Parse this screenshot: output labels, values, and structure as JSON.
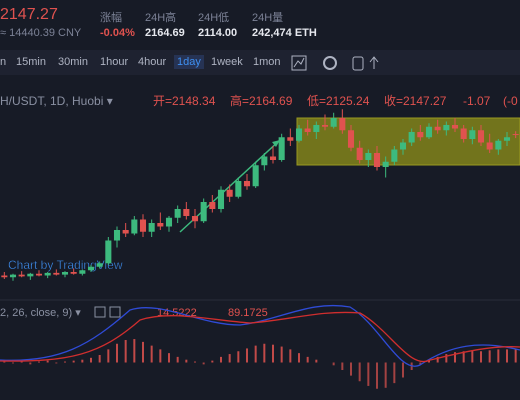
{
  "header": {
    "price": "2147.27",
    "cny": "≈ 14440.39 CNY",
    "stats": [
      {
        "label": "涨幅",
        "value": "-0.04%"
      },
      {
        "label": "24H高",
        "value": "2164.69"
      },
      {
        "label": "24H低",
        "value": "2114.00"
      },
      {
        "label": "24H量",
        "value": "242,474 ETH"
      }
    ]
  },
  "toolbar": {
    "intervals": [
      "n",
      "15min",
      "30min",
      "1hour",
      "4hour",
      "1day",
      "1week",
      "1mon"
    ]
  },
  "chart": {
    "symbol": "H/USDT, 1D, Huobi ▾",
    "ohlc": [
      "开=2148.34",
      "高=2164.69",
      "低=2125.24",
      "收=2147.27",
      "-1.07",
      "(-0"
    ],
    "watermark": "Chart by TradingView",
    "ylim": [
      1200,
      2400
    ],
    "candles": [
      [
        1340,
        1360,
        1320,
        1330
      ],
      [
        1330,
        1350,
        1310,
        1345
      ],
      [
        1345,
        1365,
        1330,
        1335
      ],
      [
        1335,
        1355,
        1315,
        1350
      ],
      [
        1350,
        1370,
        1335,
        1340
      ],
      [
        1340,
        1360,
        1325,
        1355
      ],
      [
        1355,
        1375,
        1340,
        1345
      ],
      [
        1345,
        1365,
        1330,
        1360
      ],
      [
        1360,
        1380,
        1345,
        1350
      ],
      [
        1350,
        1375,
        1340,
        1370
      ],
      [
        1370,
        1400,
        1360,
        1390
      ],
      [
        1390,
        1420,
        1380,
        1410
      ],
      [
        1410,
        1560,
        1400,
        1540
      ],
      [
        1540,
        1620,
        1500,
        1600
      ],
      [
        1600,
        1640,
        1560,
        1580
      ],
      [
        1580,
        1680,
        1570,
        1660
      ],
      [
        1660,
        1690,
        1560,
        1590
      ],
      [
        1590,
        1660,
        1560,
        1640
      ],
      [
        1640,
        1700,
        1600,
        1620
      ],
      [
        1620,
        1680,
        1590,
        1670
      ],
      [
        1670,
        1740,
        1640,
        1720
      ],
      [
        1720,
        1760,
        1660,
        1680
      ],
      [
        1680,
        1720,
        1610,
        1650
      ],
      [
        1650,
        1780,
        1640,
        1760
      ],
      [
        1760,
        1800,
        1700,
        1720
      ],
      [
        1720,
        1850,
        1700,
        1830
      ],
      [
        1830,
        1860,
        1760,
        1790
      ],
      [
        1790,
        1900,
        1780,
        1880
      ],
      [
        1880,
        1920,
        1830,
        1850
      ],
      [
        1850,
        1990,
        1840,
        1970
      ],
      [
        1970,
        2040,
        1940,
        2020
      ],
      [
        2020,
        2080,
        1980,
        2000
      ],
      [
        2000,
        2150,
        1990,
        2130
      ],
      [
        2130,
        2180,
        2080,
        2110
      ],
      [
        2110,
        2200,
        2100,
        2180
      ],
      [
        2180,
        2230,
        2140,
        2160
      ],
      [
        2160,
        2220,
        2120,
        2200
      ],
      [
        2200,
        2260,
        2170,
        2190
      ],
      [
        2190,
        2270,
        2180,
        2240
      ],
      [
        2240,
        2290,
        2150,
        2170
      ],
      [
        2170,
        2200,
        2050,
        2070
      ],
      [
        2070,
        2110,
        1980,
        2000
      ],
      [
        2000,
        2060,
        1960,
        2040
      ],
      [
        2040,
        2080,
        1940,
        1960
      ],
      [
        1960,
        2020,
        1900,
        1990
      ],
      [
        1990,
        2080,
        1970,
        2060
      ],
      [
        2060,
        2120,
        2030,
        2100
      ],
      [
        2100,
        2180,
        2080,
        2160
      ],
      [
        2160,
        2200,
        2110,
        2130
      ],
      [
        2130,
        2210,
        2120,
        2190
      ],
      [
        2190,
        2230,
        2150,
        2170
      ],
      [
        2170,
        2220,
        2140,
        2200
      ],
      [
        2200,
        2240,
        2160,
        2180
      ],
      [
        2180,
        2200,
        2100,
        2120
      ],
      [
        2120,
        2190,
        2090,
        2170
      ],
      [
        2170,
        2200,
        2080,
        2100
      ],
      [
        2100,
        2150,
        2040,
        2060
      ],
      [
        2060,
        2120,
        2030,
        2110
      ],
      [
        2110,
        2160,
        2080,
        2130
      ],
      [
        2148.34,
        2164.69,
        2125.24,
        2147.27
      ]
    ],
    "up_color": "#3dba7e",
    "down_color": "#e0524f"
  },
  "macd": {
    "params": "2, 26, close, 9) ▾",
    "values": [
      "14.5222",
      "89.1725"
    ],
    "hist_lim": [
      -40,
      40
    ],
    "hist": [
      1,
      -1,
      2,
      -2,
      1,
      2,
      -1,
      1,
      2,
      3,
      5,
      8,
      14,
      20,
      24,
      25,
      22,
      18,
      14,
      10,
      6,
      3,
      1,
      -2,
      2,
      6,
      9,
      12,
      15,
      18,
      20,
      19,
      17,
      14,
      10,
      6,
      3,
      0,
      -3,
      -8,
      -14,
      -20,
      -25,
      -28,
      -27,
      -22,
      -16,
      -8,
      -2,
      3,
      6,
      9,
      11,
      12,
      13,
      12,
      13,
      14,
      14,
      14.5222
    ]
  }
}
